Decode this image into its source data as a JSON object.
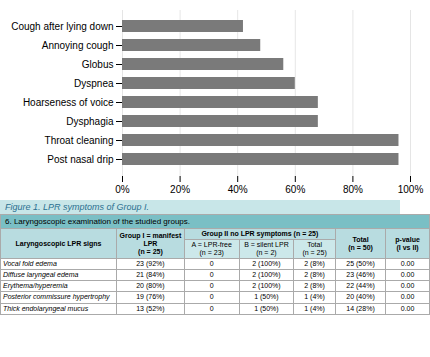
{
  "chart_data": [
    {
      "type": "bar",
      "title": "Figure 1. LPR symptoms of Group I.",
      "orientation": "horizontal",
      "categories": [
        "Cough after lying down",
        "Annoying cough",
        "Globus",
        "Dyspnea",
        "Hoarseness of voice",
        "Dysphagia",
        "Throat cleaning",
        "Post nasal drip"
      ],
      "values": [
        42,
        48,
        56,
        60,
        68,
        68,
        96,
        96
      ],
      "color": "#7a7a7a",
      "xlim": [
        0,
        100
      ],
      "xticks": [
        {
          "value": 0,
          "label": "0%"
        },
        {
          "value": 20,
          "label": "20%"
        },
        {
          "value": 40,
          "label": "40%"
        },
        {
          "value": 60,
          "label": "60%"
        },
        {
          "value": 80,
          "label": "80%"
        },
        {
          "value": 100,
          "label": "100%"
        }
      ],
      "grid": true
    },
    {
      "type": "table",
      "title": "6. Laryngoscopic examination of the studied groups.",
      "column_group": "Group II no LPR symptoms (n = 25)",
      "columns": [
        "Laryngoscopic LPR signs",
        "Group I = manifest LPR\n(n = 25)",
        "A = LPR-free\n(n = 23)",
        "B = silent LPR\n(n = 2)",
        "Total\n(n = 25)",
        "Total\n(n = 50)",
        "p-value\n(I vs II)"
      ],
      "rows": [
        [
          "Vocal fold edema",
          "23 (92%)",
          "0",
          "2 (100%)",
          "2 (8%)",
          "25 (50%)",
          "0.00"
        ],
        [
          "Diffuse laryngeal edema",
          "21 (84%)",
          "0",
          "2 (100%)",
          "2 (8%)",
          "23 (46%)",
          "0.00"
        ],
        [
          "Erythema/hyperemia",
          "20 (80%)",
          "0",
          "2 (100%)",
          "2 (8%)",
          "22 (44%)",
          "0.00"
        ],
        [
          "Posterior commissure hypertrophy",
          "19 (76%)",
          "0",
          "1 (50%)",
          "1 (4%)",
          "20 (40%)",
          "0.00"
        ],
        [
          "Thick endolaryngeal mucus",
          "13 (52%)",
          "0",
          "1 (50%)",
          "1 (4%)",
          "14 (28%)",
          "0.00"
        ]
      ]
    }
  ]
}
